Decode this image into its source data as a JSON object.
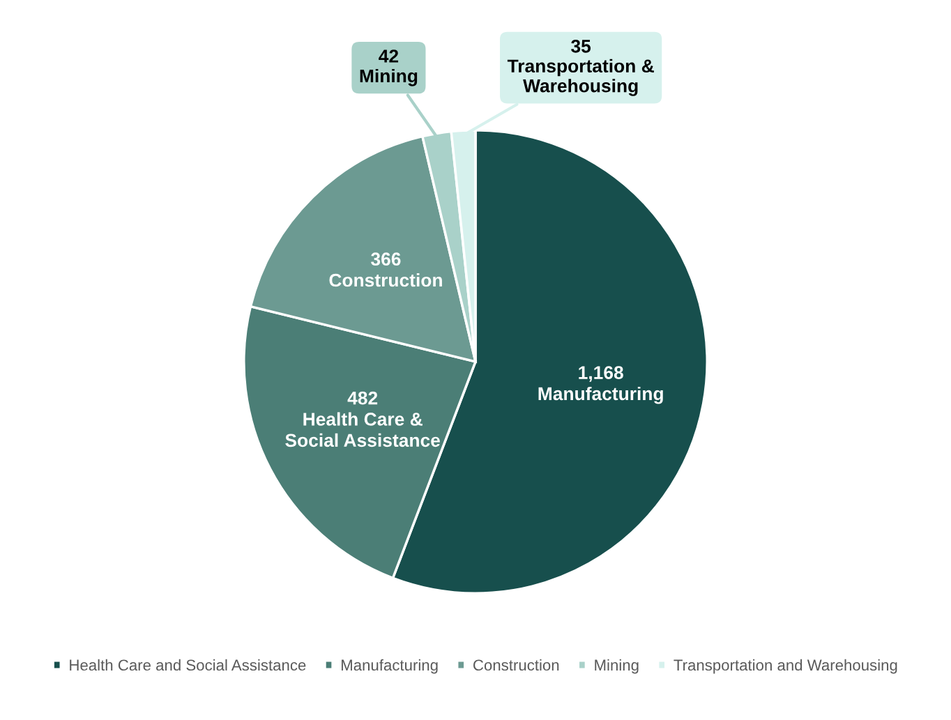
{
  "chart_data": {
    "type": "pie",
    "categories": [
      "Health Care and Social Assistance",
      "Manufacturing",
      "Construction",
      "Mining",
      "Transportation and Warehousing"
    ],
    "values": [
      1168,
      482,
      366,
      42,
      35
    ],
    "colors": [
      "#174f4d",
      "#4b7e76",
      "#6c9a92",
      "#a9d1c9",
      "#d6f1ed"
    ],
    "value_labels": [
      "1,168\nManufacturing",
      "482\nHealth Care &\nSocial Assistance",
      "366\nConstruction",
      "42\nMining",
      "35\nTransportation &\nWarehousing"
    ],
    "legend": "bottom"
  }
}
